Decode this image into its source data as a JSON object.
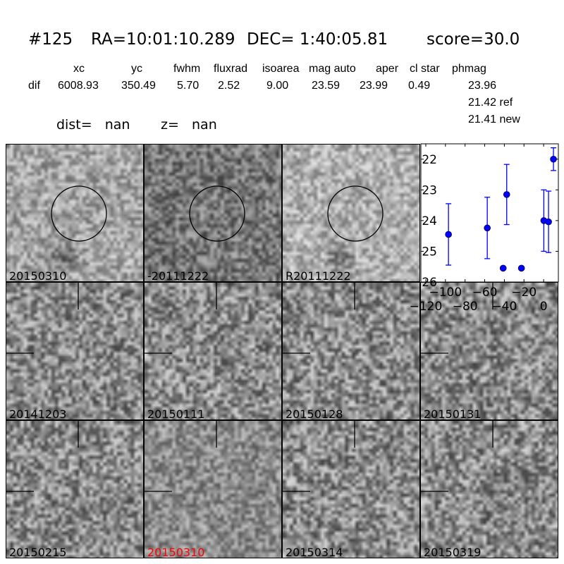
{
  "title": {
    "id": "#125",
    "ra": "RA=10:01:10.289",
    "dec": "DEC= 1:40:05.81",
    "score": "score=30.0"
  },
  "table": {
    "columns": [
      "xc",
      "yc",
      "fwhm",
      "fluxrad",
      "isoarea",
      "mag auto",
      "aper",
      "cl star",
      "phmag"
    ],
    "row_label": "dif",
    "values": [
      "6008.93",
      "350.49",
      "5.70",
      "2.52",
      "9.00",
      "23.59",
      "23.99",
      "0.49",
      "23.96"
    ],
    "ref": "21.42 ref",
    "new": "21.41 new"
  },
  "dist": "dist=   nan",
  "z": "z=   nan",
  "stamps_top": [
    {
      "label": "20150310",
      "circle": true
    },
    {
      "label": "-20111222",
      "circle": true
    },
    {
      "label": "R20111222",
      "circle": true
    }
  ],
  "stamps_grid": [
    {
      "label": "20141203",
      "highlight": false
    },
    {
      "label": "20150111",
      "highlight": false
    },
    {
      "label": "20150128",
      "highlight": false
    },
    {
      "label": "20150131",
      "highlight": false
    },
    {
      "label": "20150215",
      "highlight": false
    },
    {
      "label": "20150310",
      "highlight": true
    },
    {
      "label": "20150314",
      "highlight": false
    },
    {
      "label": "20150319",
      "highlight": false
    }
  ],
  "colors": {
    "highlight": "#ff0000",
    "points": "#0000ff"
  },
  "chart_data": {
    "type": "scatter",
    "error_bars": true,
    "xlim": [
      -125,
      15
    ],
    "ylim": [
      26,
      21.5
    ],
    "y_inverted": true,
    "xticks": [
      "−120",
      "−100",
      "−80",
      "−60",
      "−40",
      "−20",
      "0"
    ],
    "xtick_values": [
      -120,
      -100,
      -80,
      -60,
      -40,
      -20,
      0
    ],
    "yticks": [
      "22",
      "23",
      "24",
      "25",
      "26"
    ],
    "ytick_values": [
      22,
      23,
      24,
      25,
      26
    ],
    "points": [
      {
        "x": -96.9,
        "y": 24.45,
        "err": 1.0
      },
      {
        "x": -57.4,
        "y": 24.24,
        "err": 1.0
      },
      {
        "x": -41.2,
        "y": 25.55,
        "err": 0.03
      },
      {
        "x": -37.6,
        "y": 23.15,
        "err": 0.98
      },
      {
        "x": -22.6,
        "y": 25.55,
        "err": 0.03
      },
      {
        "x": 0.2,
        "y": 24.0,
        "err": 1.0
      },
      {
        "x": 5.0,
        "y": 24.04,
        "err": 1.0
      },
      {
        "x": 10.0,
        "y": 22.0,
        "err": 0.37
      }
    ]
  }
}
